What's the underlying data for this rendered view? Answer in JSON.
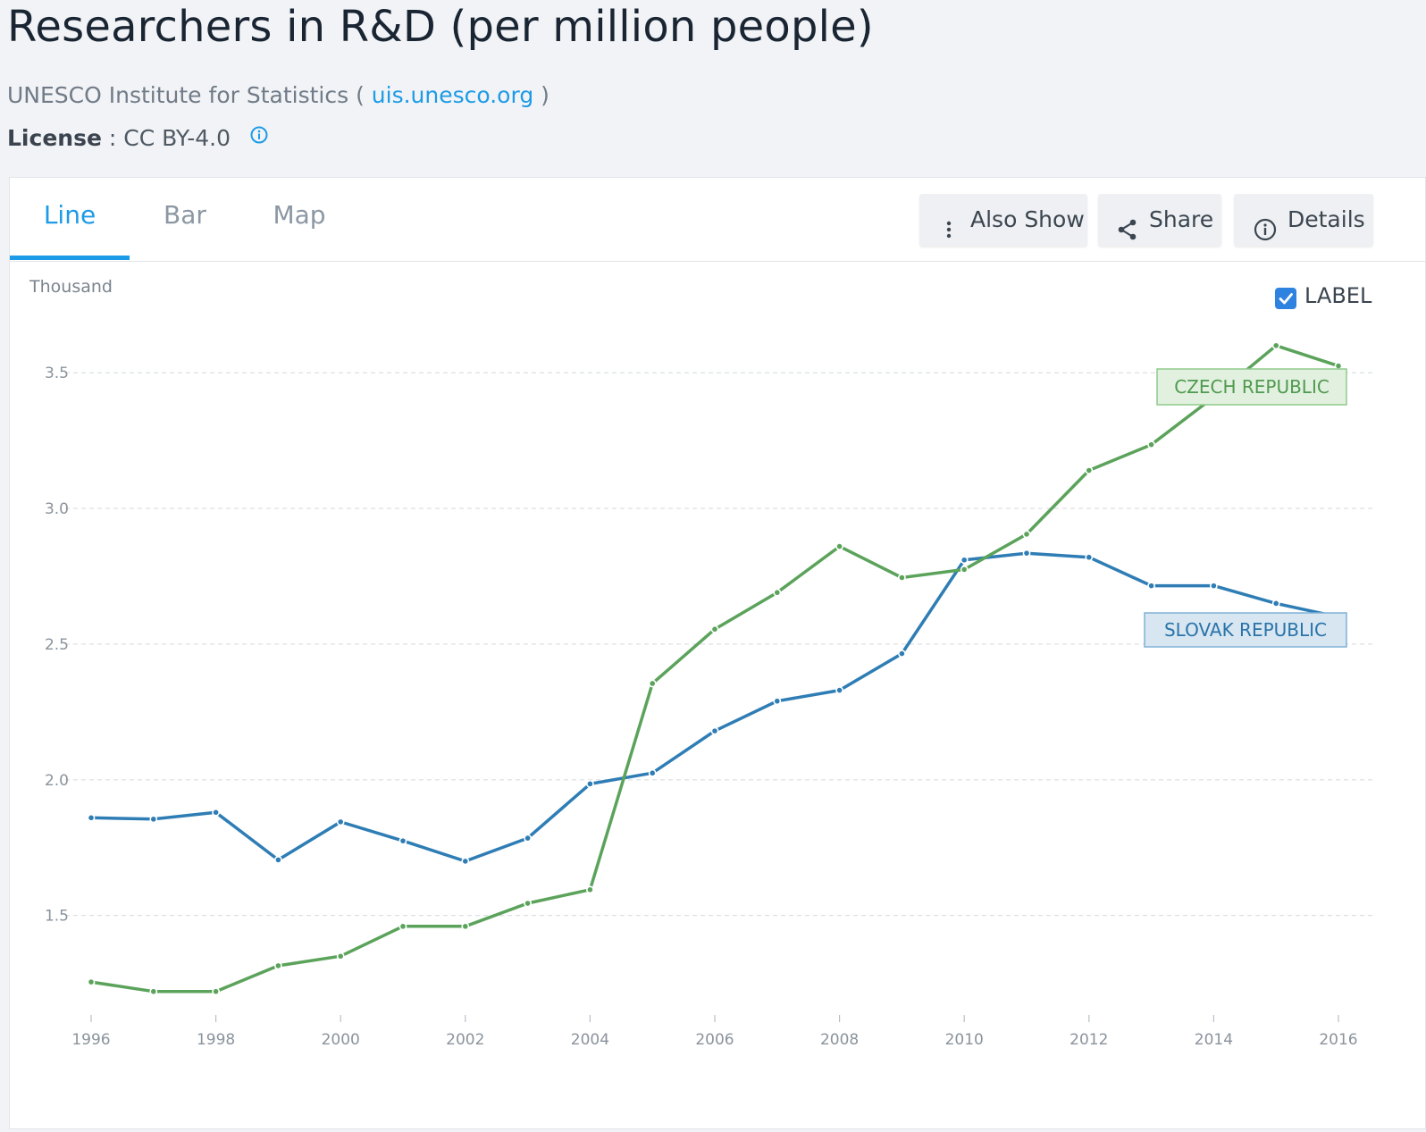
{
  "header": {
    "title": "Researchers in R&D (per million people)",
    "source_prefix": "UNESCO Institute for Statistics (",
    "source_link": "uis.unesco.org",
    "source_suffix": ")",
    "license_label": "License",
    "license_value": ": CC BY-4.0"
  },
  "tabs": [
    {
      "label": "Line",
      "active": true
    },
    {
      "label": "Bar",
      "active": false
    },
    {
      "label": "Map",
      "active": false
    }
  ],
  "toolbar": {
    "also_show": "Also Show",
    "share": "Share",
    "details": "Details"
  },
  "label_toggle": {
    "label": "LABEL",
    "checked": true
  },
  "colors": {
    "accent": "#1d9be6",
    "czech": "#5ba35b",
    "slovak": "#2e7db5"
  },
  "chart_data": {
    "type": "line",
    "ylabel": "Thousand",
    "ylim": [
      1.15,
      3.65
    ],
    "yticks": [
      1.5,
      2.0,
      2.5,
      3.0,
      3.5
    ],
    "xlim": [
      1996,
      2016
    ],
    "xticks": [
      1996,
      1998,
      2000,
      2002,
      2004,
      2006,
      2008,
      2010,
      2012,
      2014,
      2016
    ],
    "grid": true,
    "x": [
      1996,
      1997,
      1998,
      1999,
      2000,
      2001,
      2002,
      2003,
      2004,
      2005,
      2006,
      2007,
      2008,
      2009,
      2010,
      2011,
      2012,
      2013,
      2014,
      2015,
      2016
    ],
    "series": [
      {
        "name": "SLOVAK REPUBLIC",
        "color": "#2e7db5",
        "values": [
          1.86,
          1.855,
          1.88,
          1.705,
          1.845,
          1.775,
          1.7,
          1.785,
          1.985,
          2.025,
          2.18,
          2.29,
          2.33,
          2.465,
          2.81,
          2.835,
          2.82,
          2.715,
          2.715,
          2.65,
          2.6
        ]
      },
      {
        "name": "CZECH REPUBLIC",
        "color": "#5ba35b",
        "values": [
          1.255,
          1.22,
          1.22,
          1.315,
          1.35,
          1.46,
          1.46,
          1.545,
          1.595,
          2.355,
          2.555,
          2.69,
          2.86,
          2.745,
          2.775,
          2.905,
          3.14,
          3.235,
          3.41,
          3.6,
          3.525
        ]
      }
    ]
  }
}
